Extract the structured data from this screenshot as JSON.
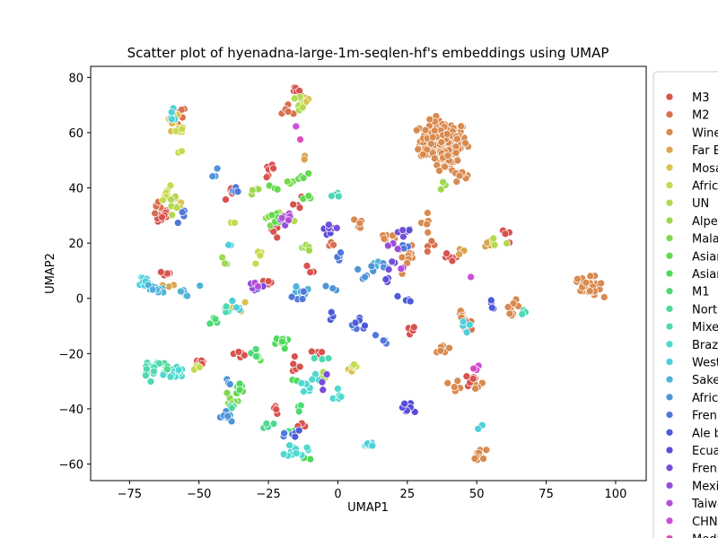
{
  "chart_data": {
    "type": "scatter",
    "title": "Scatter plot of hyenadna-large-1m-seqlen-hf's embeddings using UMAP",
    "xlabel": "UMAP1",
    "ylabel": "UMAP2",
    "xlim": [
      -89,
      111
    ],
    "ylim": [
      -66,
      84
    ],
    "xticks": [
      -75,
      -50,
      -25,
      0,
      25,
      50,
      75,
      100
    ],
    "yticks": [
      -60,
      -40,
      -20,
      0,
      20,
      40,
      60,
      80
    ],
    "grid": false,
    "legend_placement": "right, outside plot (clipped)",
    "legend": [
      {
        "name": "M3",
        "color": "#d9534e"
      },
      {
        "name": "M2",
        "color": "#d9704e"
      },
      {
        "name": "Wine",
        "color": "#d98a4e"
      },
      {
        "name": "Far E",
        "color": "#dba44e"
      },
      {
        "name": "Mosa",
        "color": "#d9c24e"
      },
      {
        "name": " Afric",
        "color": "#c8d94e"
      },
      {
        "name": "UN",
        "color": "#b3d94e"
      },
      {
        "name": "Alpe",
        "color": "#9ed94e"
      },
      {
        "name": "Mala",
        "color": "#7fd94e"
      },
      {
        "name": "Asian",
        "color": "#62d94e"
      },
      {
        "name": "Asian",
        "color": "#4ed95a"
      },
      {
        "name": "M1",
        "color": "#4ed977"
      },
      {
        "name": "North",
        "color": "#4ed995"
      },
      {
        "name": "Mixe",
        "color": "#4ed9b3"
      },
      {
        "name": "Braz",
        "color": "#4ed9cf"
      },
      {
        "name": "West",
        "color": "#4ecfd9"
      },
      {
        "name": "Sake",
        "color": "#4eb2d9"
      },
      {
        "name": "Afric",
        "color": "#4e95d9"
      },
      {
        "name": "Fren",
        "color": "#4e78d9"
      },
      {
        "name": "Ale b",
        "color": "#4e5bd9"
      },
      {
        "name": "Ecua",
        "color": "#5a4ed9"
      },
      {
        "name": "Fren",
        "color": "#774ed9"
      },
      {
        "name": "Mexi",
        "color": "#954ed9"
      },
      {
        "name": "Taiwa",
        "color": "#b34ed9"
      },
      {
        "name": "CHN",
        "color": "#cf4ed9"
      },
      {
        "name": "Medi",
        "color": "#d94eb8"
      }
    ],
    "series": [
      {
        "color": "#d98a4e",
        "clusters": [
          [
            38,
            57,
            7,
            6,
            160
          ],
          [
            39,
            50,
            4,
            3,
            25
          ],
          [
            44,
            45,
            2,
            2,
            8
          ],
          [
            91,
            4,
            3,
            3,
            28
          ],
          [
            86,
            6,
            2,
            2,
            5
          ],
          [
            51,
            -57,
            2,
            2,
            16
          ],
          [
            43,
            -31,
            2,
            2,
            5
          ],
          [
            50,
            -31,
            2,
            2,
            8
          ],
          [
            38,
            -19,
            2,
            2,
            6
          ],
          [
            25,
            15,
            3,
            3,
            10
          ],
          [
            18,
            22,
            3,
            3,
            6
          ],
          [
            8,
            27,
            2,
            2,
            5
          ],
          [
            63,
            -3,
            2,
            2,
            10
          ],
          [
            45,
            -8,
            2,
            3,
            10
          ],
          [
            32,
            28,
            2,
            4,
            6
          ]
        ]
      },
      {
        "color": "#d9534e",
        "clusters": [
          [
            -16,
            75,
            2,
            1,
            8
          ],
          [
            -24,
            46,
            2,
            2,
            8
          ],
          [
            -38,
            38,
            2,
            2,
            6
          ],
          [
            -63,
            30,
            2,
            3,
            12
          ],
          [
            -62,
            9,
            2,
            1,
            5
          ],
          [
            -50,
            -23,
            2,
            2,
            8
          ],
          [
            -35,
            -20,
            2,
            2,
            7
          ],
          [
            -15,
            -25,
            2,
            2,
            6
          ],
          [
            -13,
            -46,
            2,
            1,
            4
          ],
          [
            -22,
            -40,
            2,
            2,
            5
          ],
          [
            -23,
            24,
            2,
            2,
            5
          ],
          [
            -15,
            34,
            2,
            3,
            4
          ],
          [
            -10,
            10,
            2,
            2,
            3
          ],
          [
            26,
            -12,
            2,
            2,
            5
          ],
          [
            40,
            14,
            3,
            2,
            6
          ],
          [
            48,
            -30,
            2,
            2,
            5
          ],
          [
            -25,
            6,
            2,
            2,
            4
          ],
          [
            -8,
            -20,
            3,
            2,
            4
          ],
          [
            60,
            22,
            2,
            2,
            4
          ]
        ]
      },
      {
        "color": "#d9704e",
        "clusters": [
          [
            -17,
            68,
            2,
            2,
            5
          ],
          [
            -58,
            66,
            3,
            3,
            10
          ],
          [
            -65,
            32,
            2,
            2,
            5
          ],
          [
            47,
            -10,
            2,
            2,
            4
          ],
          [
            35,
            20,
            2,
            2,
            4
          ],
          [
            -2,
            20,
            2,
            2,
            3
          ]
        ]
      },
      {
        "color": "#dba44e",
        "clusters": [
          [
            -12,
            50,
            1,
            2,
            3
          ],
          [
            -62,
            4,
            2,
            2,
            4
          ],
          [
            55,
            20,
            2,
            2,
            4
          ],
          [
            45,
            18,
            2,
            2,
            3
          ]
        ]
      },
      {
        "color": "#d9c24e",
        "clusters": [
          [
            -12,
            72,
            2,
            1,
            5
          ],
          [
            -59,
            63,
            2,
            3,
            6
          ],
          [
            5,
            -25,
            2,
            2,
            5
          ],
          [
            -58,
            35,
            2,
            2,
            4
          ],
          [
            -35,
            -3,
            2,
            2,
            3
          ]
        ]
      },
      {
        "color": "#c8d94e",
        "clusters": [
          [
            -56,
            61,
            2,
            1,
            5
          ],
          [
            -61,
            38,
            2,
            2,
            8
          ],
          [
            -57,
            53,
            1,
            1,
            2
          ],
          [
            -28,
            15,
            2,
            2,
            5
          ],
          [
            -50,
            -25,
            2,
            1,
            3
          ],
          [
            -38,
            27,
            1,
            1,
            2
          ],
          [
            5,
            -24,
            2,
            2,
            3
          ]
        ]
      },
      {
        "color": "#b3d94e",
        "clusters": [
          [
            -14,
            71,
            2,
            2,
            8
          ],
          [
            -59,
            35,
            2,
            2,
            5
          ],
          [
            -20,
            30,
            3,
            2,
            6
          ],
          [
            -6,
            -28,
            2,
            2,
            3
          ],
          [
            57,
            19,
            2,
            2,
            4
          ]
        ]
      },
      {
        "color": "#9ed94e",
        "clusters": [
          [
            -12,
            18,
            2,
            2,
            5
          ],
          [
            -30,
            39,
            2,
            2,
            4
          ],
          [
            -41,
            13,
            2,
            2,
            3
          ],
          [
            38,
            40,
            2,
            2,
            3
          ]
        ]
      },
      {
        "color": "#7fd94e",
        "clusters": [
          [
            -38,
            -36,
            2,
            2,
            6
          ],
          [
            -25,
            29,
            2,
            2,
            5
          ],
          [
            -19,
            42,
            2,
            1,
            3
          ]
        ]
      },
      {
        "color": "#62d94e",
        "clusters": [
          [
            -13,
            44,
            2,
            1,
            6
          ],
          [
            -22,
            29,
            3,
            2,
            8
          ],
          [
            -36,
            -34,
            2,
            2,
            6
          ],
          [
            -29,
            -22,
            2,
            2,
            3
          ],
          [
            -10,
            36,
            2,
            2,
            3
          ],
          [
            -24,
            40,
            2,
            1,
            3
          ]
        ]
      },
      {
        "color": "#4ed95a",
        "clusters": [
          [
            -20,
            -16,
            2,
            2,
            12
          ],
          [
            -35,
            -32,
            2,
            2,
            5
          ],
          [
            -12,
            -58,
            2,
            1,
            3
          ],
          [
            -15,
            -30,
            2,
            1,
            3
          ]
        ]
      },
      {
        "color": "#4ed977",
        "clusters": [
          [
            -18,
            -48,
            2,
            2,
            5
          ],
          [
            -30,
            -20,
            2,
            2,
            4
          ],
          [
            -13,
            -40,
            2,
            2,
            3
          ],
          [
            -44,
            -8,
            2,
            2,
            4
          ]
        ]
      },
      {
        "color": "#4ed995",
        "clusters": [
          [
            -62,
            -25,
            2,
            2,
            8
          ],
          [
            -38,
            -40,
            2,
            2,
            4
          ],
          [
            -25,
            -45,
            2,
            2,
            4
          ]
        ]
      },
      {
        "color": "#4ed9b3",
        "clusters": [
          [
            -67,
            -25,
            3,
            3,
            18
          ],
          [
            -40,
            -5,
            2,
            2,
            4
          ],
          [
            0,
            37,
            2,
            1,
            5
          ],
          [
            66,
            -5,
            2,
            2,
            3
          ],
          [
            -5,
            -22,
            2,
            2,
            3
          ]
        ]
      },
      {
        "color": "#4ed9cf",
        "clusters": [
          [
            -59,
            -27,
            3,
            2,
            14
          ],
          [
            -15,
            -55,
            3,
            2,
            14
          ],
          [
            -10,
            -32,
            2,
            2,
            6
          ],
          [
            0,
            -34,
            2,
            2,
            5
          ],
          [
            -8,
            -28,
            2,
            2,
            3
          ]
        ]
      },
      {
        "color": "#4ecfd9",
        "clusters": [
          [
            -70,
            6,
            2,
            2,
            12
          ],
          [
            11,
            -53,
            2,
            1,
            10
          ],
          [
            -60,
            66,
            2,
            2,
            8
          ],
          [
            45,
            -10,
            2,
            2,
            4
          ],
          [
            51,
            -47,
            1,
            1,
            2
          ],
          [
            -37,
            -3,
            2,
            2,
            4
          ],
          [
            -40,
            19,
            1,
            1,
            2
          ]
        ]
      },
      {
        "color": "#4eb2d9",
        "clusters": [
          [
            -66,
            3,
            3,
            2,
            12
          ],
          [
            -56,
            2,
            2,
            1,
            5
          ],
          [
            -13,
            2,
            2,
            2,
            6
          ],
          [
            14,
            12,
            2,
            2,
            4
          ],
          [
            -51,
            4,
            1,
            1,
            1
          ]
        ]
      },
      {
        "color": "#4e95d9",
        "clusters": [
          [
            -45,
            46,
            2,
            2,
            5
          ],
          [
            -40,
            -43,
            2,
            2,
            10
          ],
          [
            15,
            11,
            3,
            2,
            6
          ],
          [
            8,
            9,
            2,
            2,
            4
          ],
          [
            -2,
            4,
            2,
            2,
            3
          ],
          [
            -38,
            -30,
            2,
            2,
            3
          ]
        ]
      },
      {
        "color": "#4e78d9",
        "clusters": [
          [
            -57,
            30,
            2,
            2,
            4
          ],
          [
            -37,
            39,
            2,
            2,
            4
          ],
          [
            -14,
            0,
            2,
            2,
            4
          ],
          [
            16,
            -15,
            2,
            2,
            5
          ],
          [
            6,
            -10,
            2,
            2,
            5
          ],
          [
            0,
            14,
            2,
            2,
            4
          ],
          [
            -18,
            -50,
            2,
            2,
            4
          ],
          [
            24,
            19,
            2,
            2,
            3
          ]
        ]
      },
      {
        "color": "#4e5bd9",
        "clusters": [
          [
            -2,
            -6,
            2,
            2,
            4
          ],
          [
            9,
            -9,
            2,
            2,
            5
          ],
          [
            24,
            -1,
            2,
            2,
            4
          ],
          [
            56,
            -3,
            2,
            2,
            4
          ],
          [
            -15,
            -50,
            2,
            2,
            3
          ]
        ]
      },
      {
        "color": "#5a4ed9",
        "clusters": [
          [
            25,
            -40,
            2,
            2,
            14
          ],
          [
            -4,
            25,
            2,
            2,
            5
          ],
          [
            18,
            6,
            2,
            2,
            4
          ],
          [
            26,
            25,
            2,
            2,
            4
          ]
        ]
      },
      {
        "color": "#774ed9",
        "clusters": [
          [
            -2,
            26,
            2,
            1,
            4
          ],
          [
            22,
            24,
            2,
            2,
            3
          ],
          [
            -28,
            4,
            2,
            2,
            3
          ],
          [
            21,
            12,
            2,
            2,
            3
          ],
          [
            -6,
            -30,
            2,
            2,
            3
          ]
        ]
      },
      {
        "color": "#954ed9",
        "clusters": [
          [
            -21,
            28,
            2,
            2,
            3
          ],
          [
            19,
            19,
            2,
            2,
            3
          ],
          [
            -30,
            5,
            2,
            1,
            2
          ]
        ]
      },
      {
        "color": "#b34ed9",
        "clusters": [
          [
            -18,
            29,
            2,
            2,
            4
          ],
          [
            -30,
            5,
            2,
            1,
            2
          ],
          [
            24,
            11,
            2,
            2,
            2
          ]
        ]
      },
      {
        "color": "#cf4ed9",
        "clusters": [
          [
            -15,
            62,
            1,
            1,
            1
          ],
          [
            50,
            -25,
            1,
            1,
            2
          ],
          [
            49,
            7,
            1,
            1,
            1
          ]
        ]
      },
      {
        "color": "#d94eb8",
        "clusters": [
          [
            -13,
            58,
            1,
            1,
            1
          ],
          [
            48,
            -25,
            1,
            1,
            1
          ]
        ]
      }
    ]
  }
}
